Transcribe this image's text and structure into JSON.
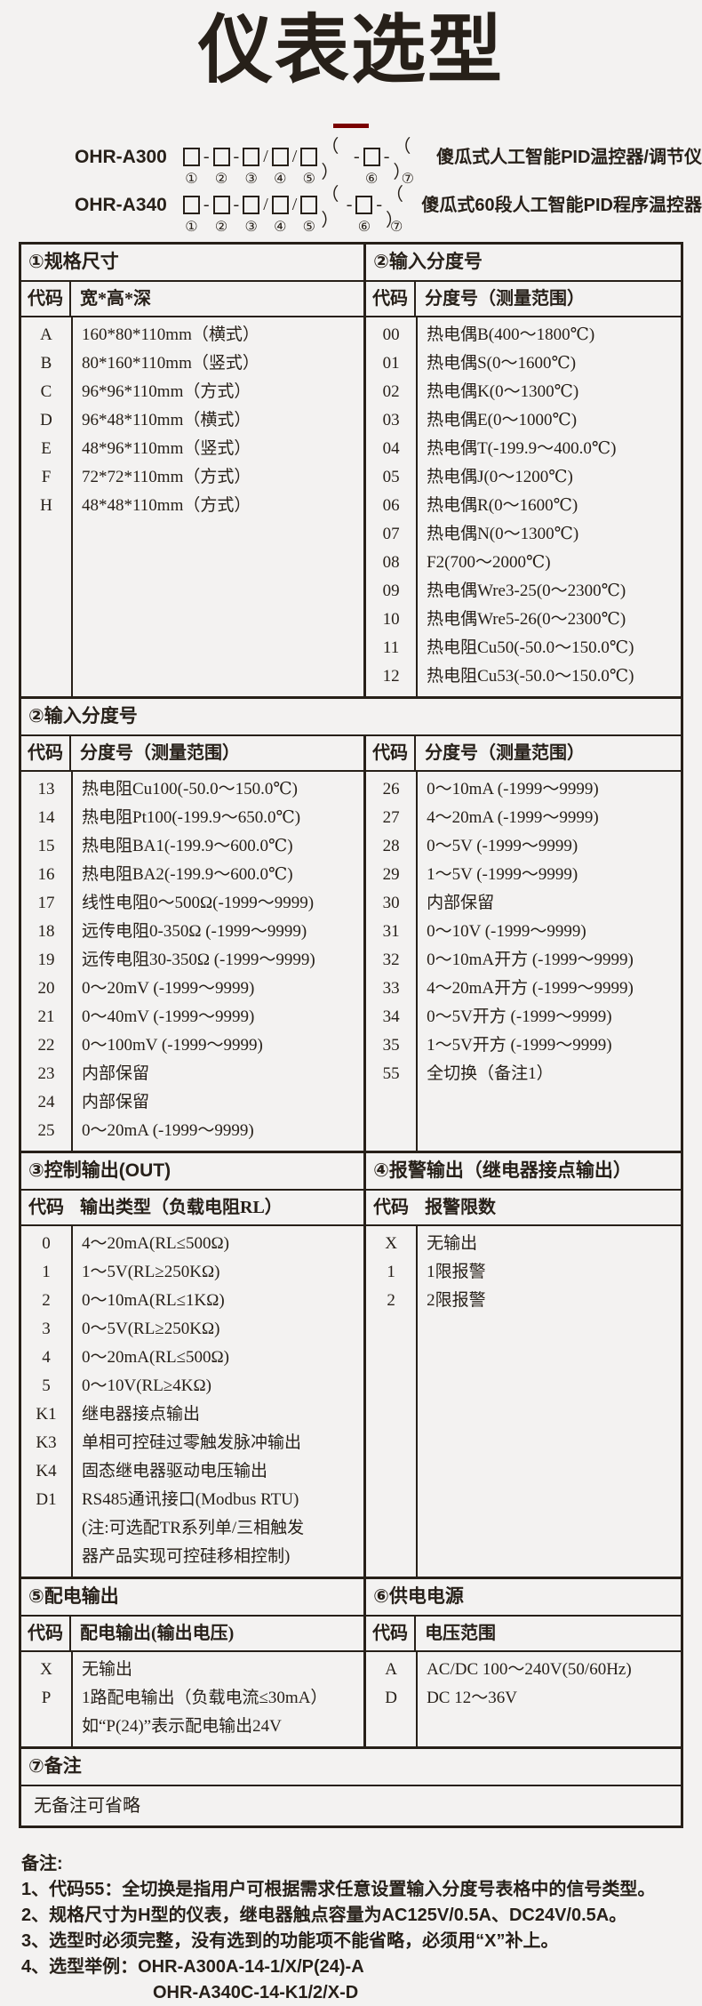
{
  "page": {
    "title": "仪表选型",
    "colors": {
      "background": "#f3f2f1",
      "ink": "#272019",
      "accent": "#7a0101"
    }
  },
  "model_pattern": [
    {
      "t": "box",
      "d": "①"
    },
    {
      "t": "sep",
      "v": "-"
    },
    {
      "t": "box",
      "d": "②"
    },
    {
      "t": "sep",
      "v": "-"
    },
    {
      "t": "box",
      "d": "③"
    },
    {
      "t": "sep",
      "v": "/"
    },
    {
      "t": "box",
      "d": "④"
    },
    {
      "t": "sep",
      "v": "/"
    },
    {
      "t": "box",
      "d": "⑤"
    },
    {
      "t": "sep",
      "v": "（ ）"
    },
    {
      "t": "sep",
      "v": "-"
    },
    {
      "t": "box",
      "d": "⑥"
    },
    {
      "t": "sep",
      "v": "-"
    },
    {
      "t": "sep",
      "v": "（ ）",
      "d": "⑦"
    }
  ],
  "models": [
    {
      "name": "OHR-A300",
      "desc": "傻瓜式人工智能PID温控器/调节仪"
    },
    {
      "name": "OHR-A340",
      "desc": "傻瓜式60段人工智能PID程序温控器"
    }
  ],
  "table": {
    "sections": [
      {
        "id": "size-input",
        "type": "split",
        "left": {
          "header": "①规格尺寸",
          "cols": [
            "代码",
            "宽*高*深"
          ],
          "rows": [
            [
              "A",
              "160*80*110mm（横式）"
            ],
            [
              "B",
              "80*160*110mm（竖式）"
            ],
            [
              "C",
              "96*96*110mm（方式）"
            ],
            [
              "D",
              "96*48*110mm（横式）"
            ],
            [
              "E",
              "48*96*110mm（竖式）"
            ],
            [
              "F",
              "72*72*110mm（方式）"
            ],
            [
              "H",
              "48*48*110mm（方式）"
            ]
          ]
        },
        "right": {
          "header": "②输入分度号",
          "cols": [
            "代码",
            "分度号（测量范围）"
          ],
          "rows": [
            [
              "00",
              "热电偶B(400～1800℃)"
            ],
            [
              "01",
              "热电偶S(0～1600℃)"
            ],
            [
              "02",
              "热电偶K(0～1300℃)"
            ],
            [
              "03",
              "热电偶E(0～1000℃)"
            ],
            [
              "04",
              "热电偶T(-199.9～400.0℃)"
            ],
            [
              "05",
              "热电偶J(0～1200℃)"
            ],
            [
              "06",
              "热电偶R(0～1600℃)"
            ],
            [
              "07",
              "热电偶N(0～1300℃)"
            ],
            [
              "08",
              "F2(700～2000℃)"
            ],
            [
              "09",
              "热电偶Wre3-25(0～2300℃)"
            ],
            [
              "10",
              "热电偶Wre5-26(0～2300℃)"
            ],
            [
              "11",
              "热电阻Cu50(-50.0～150.0℃)"
            ],
            [
              "12",
              "热电阻Cu53(-50.0～150.0℃)"
            ]
          ]
        }
      },
      {
        "id": "input-division",
        "type": "fullheader",
        "header": "②输入分度号",
        "left": {
          "cols": [
            "代码",
            "分度号（测量范围）"
          ],
          "rows": [
            [
              "13",
              "热电阻Cu100(-50.0～150.0℃)"
            ],
            [
              "14",
              "热电阻Pt100(-199.9～650.0℃)"
            ],
            [
              "15",
              "热电阻BA1(-199.9～600.0℃)"
            ],
            [
              "16",
              "热电阻BA2(-199.9～600.0℃)"
            ],
            [
              "17",
              "线性电阻0～500Ω(-1999～9999)"
            ],
            [
              "18",
              "远传电阻0-350Ω (-1999～9999)"
            ],
            [
              "19",
              "远传电阻30-350Ω (-1999～9999)"
            ],
            [
              "20",
              "0～20mV (-1999～9999)"
            ],
            [
              "21",
              "0～40mV (-1999～9999)"
            ],
            [
              "22",
              "0～100mV (-1999～9999)"
            ],
            [
              "23",
              "内部保留"
            ],
            [
              "24",
              "内部保留"
            ],
            [
              "25",
              "0～20mA (-1999～9999)"
            ]
          ]
        },
        "right": {
          "cols": [
            "代码",
            "分度号（测量范围）"
          ],
          "rows": [
            [
              "26",
              "0～10mA (-1999～9999)"
            ],
            [
              "27",
              "4～20mA (-1999～9999)"
            ],
            [
              "28",
              "0～5V (-1999～9999)"
            ],
            [
              "29",
              "1～5V (-1999～9999)"
            ],
            [
              "30",
              "内部保留"
            ],
            [
              "31",
              "0～10V (-1999～9999)"
            ],
            [
              "32",
              "0～10mA开方 (-1999～9999)"
            ],
            [
              "33",
              "4～20mA开方 (-1999～9999)"
            ],
            [
              "34",
              "0～5V开方 (-1999～9999)"
            ],
            [
              "35",
              "1～5V开方 (-1999～9999)"
            ],
            [
              "55",
              "全切换（备注1）"
            ]
          ]
        }
      },
      {
        "id": "control-alarm",
        "type": "split",
        "subDivider": false,
        "left": {
          "header": "③控制输出(OUT)",
          "cols": [
            "代码",
            "输出类型（负载电阻RL）"
          ],
          "rows": [
            [
              "0",
              "4～20mA(RL≤500Ω)"
            ],
            [
              "1",
              "1～5V(RL≥250KΩ)"
            ],
            [
              "2",
              "0～10mA(RL≤1KΩ)"
            ],
            [
              "3",
              "0～5V(RL≥250KΩ)"
            ],
            [
              "4",
              "0～20mA(RL≤500Ω)"
            ],
            [
              "5",
              "0～10V(RL≥4KΩ)"
            ],
            [
              "K1",
              "继电器接点输出"
            ],
            [
              "K3",
              "单相可控硅过零触发脉冲输出"
            ],
            [
              "K4",
              "固态继电器驱动电压输出"
            ],
            [
              "D1",
              "RS485通讯接口(Modbus RTU)\n(注:可选配TR系列单/三相触发\n器产品实现可控硅移相控制)"
            ]
          ]
        },
        "right": {
          "header": "④报警输出（继电器接点输出）",
          "cols": [
            "代码",
            "报警限数"
          ],
          "rows": [
            [
              "X",
              "无输出"
            ],
            [
              "1",
              "1限报警"
            ],
            [
              "2",
              "2限报警"
            ]
          ]
        }
      },
      {
        "id": "distribution-supply",
        "type": "split",
        "left": {
          "header": "⑤配电输出",
          "cols": [
            "代码",
            "配电输出(输出电压)"
          ],
          "rows": [
            [
              "X",
              "无输出"
            ],
            [
              "P",
              "1路配电输出（负载电流≤30mA）\n如“P(24)”表示配电输出24V"
            ]
          ]
        },
        "right": {
          "header": "⑥供电电源",
          "cols": [
            "代码",
            "电压范围"
          ],
          "rows": [
            [
              "A",
              "AC/DC 100～240V(50/60Hz)"
            ],
            [
              "D",
              "DC 12～36V"
            ]
          ]
        }
      },
      {
        "id": "remark",
        "type": "full",
        "header": "⑦备注",
        "content": "无备注可省略"
      }
    ]
  },
  "footnotes": {
    "title": "备注:",
    "items": [
      {
        "text": "1、代码55：全切换是指用户可根据需求任意设置输入分度号表格中的信号类型。"
      },
      {
        "text": "2、规格尺寸为H型的仪表，继电器触点容量为AC125V/0.5A、DC24V/0.5A。"
      },
      {
        "text": "3、选型时必须完整，没有选到的功能项不能省略，必须用“X”补上。"
      },
      {
        "text": "4、选型举例：OHR-A300A-14-1/X/P(24)-A"
      },
      {
        "text": "OHR-A340C-14-K1/2/X-D",
        "indent": true
      }
    ]
  }
}
